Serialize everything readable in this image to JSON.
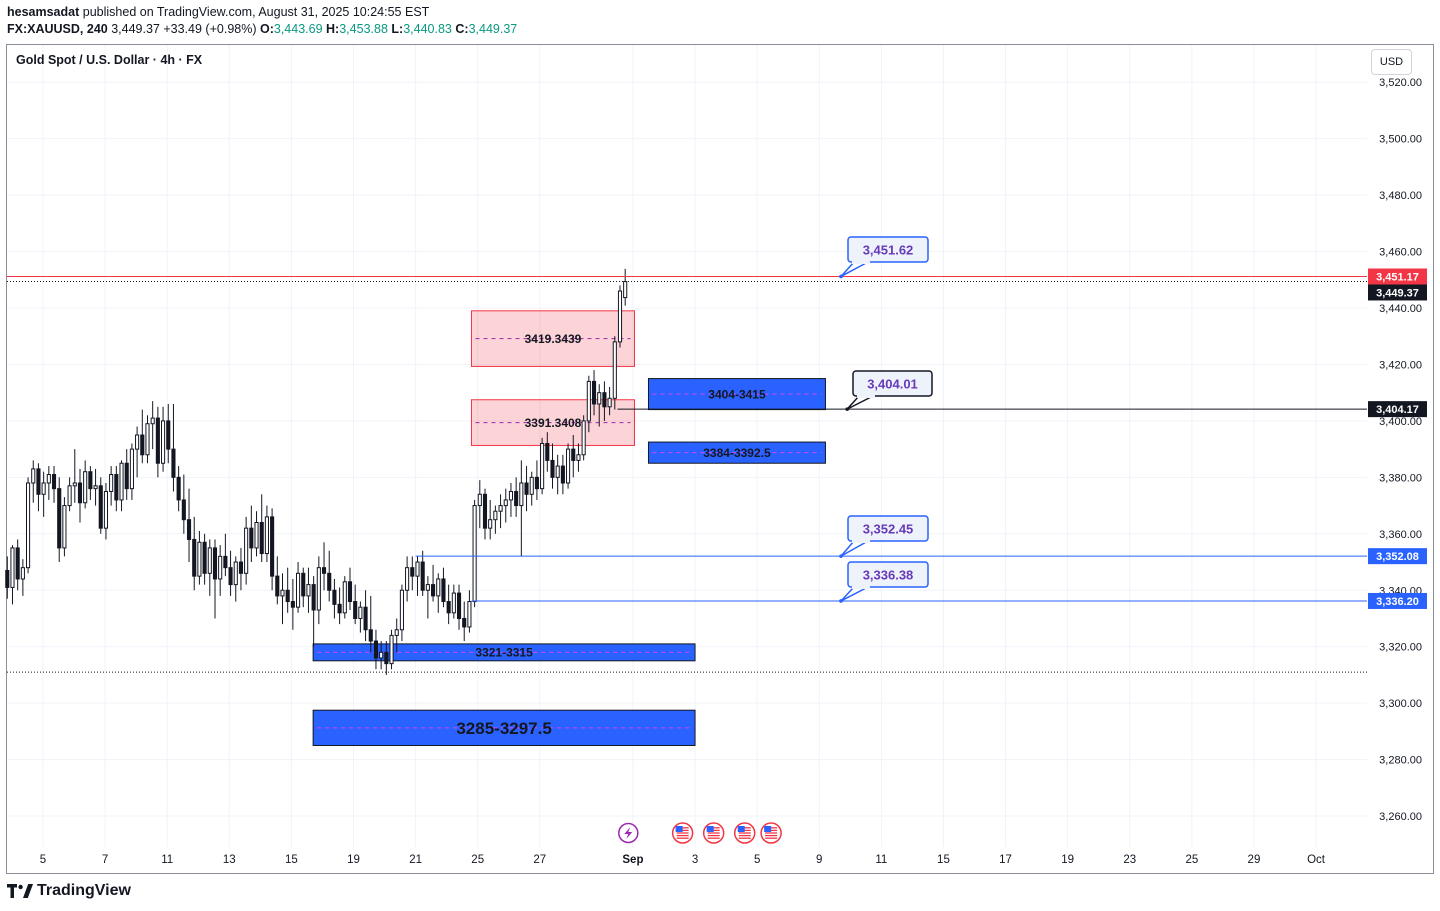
{
  "header": {
    "author": "hesamsadat",
    "published_text": "published on TradingView.com, August 31, 2025 10:24:55 EST",
    "symbol": "FX:XAUUSD, 240",
    "last": "3,449.37",
    "change": "+33.49 (+0.98%)",
    "o_label": "O:",
    "o": "3,443.69",
    "h_label": "H:",
    "h": "3,453.88",
    "l_label": "L:",
    "l": "3,440.83",
    "c_label": "C:",
    "c": "3,449.37"
  },
  "pane": {
    "title": "Gold Spot / U.S. Dollar · 4h · FX",
    "currency": "USD"
  },
  "footer": {
    "brand": "TradingView"
  },
  "colors": {
    "up": "#089981",
    "candle": "#131722",
    "red_line": "#f23645",
    "blue_zone": "#2962ff",
    "pink_zone": "#f6cdd1",
    "grid": "#f0f3fa"
  },
  "chart_data": {
    "type": "candlestick",
    "title": "Gold Spot / U.S. Dollar · 4h · FX",
    "currency": "USD",
    "ylim": [
      3252,
      3532
    ],
    "y_ticks": [
      {
        "v": 3520,
        "t": "3,520.00"
      },
      {
        "v": 3500,
        "t": "3,500.00"
      },
      {
        "v": 3480,
        "t": "3,480.00"
      },
      {
        "v": 3460,
        "t": "3,460.00"
      },
      {
        "v": 3440,
        "t": "3,440.00"
      },
      {
        "v": 3420,
        "t": "3,420.00"
      },
      {
        "v": 3400,
        "t": "3,400.00"
      },
      {
        "v": 3380,
        "t": "3,380.00"
      },
      {
        "v": 3360,
        "t": "3,360.00"
      },
      {
        "v": 3340,
        "t": "3,340.00"
      },
      {
        "v": 3320,
        "t": "3,320.00"
      },
      {
        "v": 3300,
        "t": "3,300.00"
      },
      {
        "v": 3280,
        "t": "3,280.00"
      },
      {
        "v": 3260,
        "t": "3,260.00"
      }
    ],
    "x_ticks": [
      {
        "d": 0,
        "t": "5"
      },
      {
        "d": 2,
        "t": "7"
      },
      {
        "d": 4,
        "t": "11"
      },
      {
        "d": 6,
        "t": "13"
      },
      {
        "d": 8,
        "t": "15"
      },
      {
        "d": 10,
        "t": "19"
      },
      {
        "d": 12,
        "t": "21"
      },
      {
        "d": 14,
        "t": "25"
      },
      {
        "d": 16,
        "t": "27"
      },
      {
        "d": 19,
        "t": "Sep",
        "bold": true
      },
      {
        "d": 21,
        "t": "3"
      },
      {
        "d": 23,
        "t": "5"
      },
      {
        "d": 25,
        "t": "9"
      },
      {
        "d": 27,
        "t": "11"
      },
      {
        "d": 29,
        "t": "15"
      },
      {
        "d": 31,
        "t": "17"
      },
      {
        "d": 33,
        "t": "19"
      },
      {
        "d": 35,
        "t": "23"
      },
      {
        "d": 37,
        "t": "25"
      },
      {
        "d": 39,
        "t": "29"
      },
      {
        "d": 41,
        "t": "Oct"
      }
    ],
    "price_tags": [
      {
        "v": 3451.17,
        "t": "3,451.17",
        "bg": "#f23645"
      },
      {
        "v": 3449.37,
        "t": "3,449.37",
        "bg": "#131722"
      },
      {
        "v": 3404.17,
        "t": "3,404.17",
        "bg": "#131722"
      },
      {
        "v": 3352.08,
        "t": "3,352.08",
        "bg": "#2962ff"
      },
      {
        "v": 3336.2,
        "t": "3,336.20",
        "bg": "#2962ff"
      }
    ],
    "hlines": [
      {
        "v": 3451.17,
        "d0": -1.2,
        "d1": 43.7,
        "color": "#f23645",
        "dash": ""
      },
      {
        "v": 3449.37,
        "d0": -1.2,
        "d1": 43.7,
        "color": "#131722",
        "dash": "1,2"
      },
      {
        "v": 3311.0,
        "d0": -1.2,
        "d1": 43.7,
        "color": "#131722",
        "dash": "1,2"
      },
      {
        "v": 3404.17,
        "d0": 18.5,
        "d1": 43.7,
        "color": "#131722",
        "dash": ""
      },
      {
        "v": 3352.08,
        "d0": 12.0,
        "d1": 43.7,
        "color": "#2962ff",
        "dash": ""
      },
      {
        "v": 3336.2,
        "d0": 13.8,
        "d1": 43.7,
        "color": "#2962ff",
        "dash": ""
      }
    ],
    "zones": [
      {
        "label": "3419.3439",
        "top": 3439,
        "bottom": 3419.3,
        "d0": 13.8,
        "d1": 19.05,
        "style": "pink",
        "fs": 12
      },
      {
        "label": "3391.3408",
        "top": 3407.5,
        "bottom": 3391.3,
        "d0": 13.8,
        "d1": 19.05,
        "style": "pink",
        "fs": 12
      },
      {
        "label": "3404-3415",
        "top": 3415,
        "bottom": 3404,
        "d0": 19.5,
        "d1": 25.2,
        "style": "blue",
        "fs": 12
      },
      {
        "label": "3384-3392.5",
        "top": 3392.5,
        "bottom": 3385,
        "d0": 19.5,
        "d1": 25.2,
        "style": "blue",
        "fs": 12
      },
      {
        "label": "3321-3315",
        "top": 3321,
        "bottom": 3315,
        "d0": 8.7,
        "d1": 21.0,
        "style": "blue",
        "fs": 12
      },
      {
        "label": "3285-3297.5",
        "top": 3297.5,
        "bottom": 3285,
        "d0": 8.7,
        "d1": 21.0,
        "style": "blue",
        "fs": 17
      }
    ],
    "callouts": [
      {
        "label": "3,451.62",
        "v": 3451.17,
        "d": 25.7,
        "bx": 848,
        "by": 237,
        "bw": 80,
        "bh": 25,
        "border": "#2962ff"
      },
      {
        "label": "3,404.01",
        "v": 3404.17,
        "d": 25.9,
        "bx": 853,
        "by": 371,
        "bw": 79,
        "bh": 25,
        "border": "#131722"
      },
      {
        "label": "3,352.45",
        "v": 3352.08,
        "d": 25.7,
        "bx": 848,
        "by": 516,
        "bw": 80,
        "bh": 25,
        "border": "#2962ff"
      },
      {
        "label": "3,336.38",
        "v": 3336.2,
        "d": 25.7,
        "bx": 848,
        "by": 562,
        "bw": 80,
        "bh": 25,
        "border": "#2962ff"
      }
    ],
    "events": [
      {
        "d": 18.85,
        "kind": "lightning"
      },
      {
        "d": 20.6,
        "kind": "us-flag"
      },
      {
        "d": 21.6,
        "kind": "us-flag"
      },
      {
        "d": 22.6,
        "kind": "us-flag"
      },
      {
        "d": 23.45,
        "kind": "us-flag"
      }
    ],
    "ohlc": [
      [
        3347,
        3352,
        3337,
        3341
      ],
      [
        3341,
        3356,
        3335,
        3355
      ],
      [
        3355,
        3358,
        3340,
        3344
      ],
      [
        3344,
        3351,
        3338,
        3348
      ],
      [
        3348,
        3380,
        3346,
        3378
      ],
      [
        3378,
        3386,
        3371,
        3383
      ],
      [
        3383,
        3385,
        3368,
        3374
      ],
      [
        3374,
        3382,
        3366,
        3378
      ],
      [
        3378,
        3384,
        3372,
        3381
      ],
      [
        3381,
        3384,
        3371,
        3376
      ],
      [
        3376,
        3380,
        3350,
        3355
      ],
      [
        3355,
        3373,
        3352,
        3370
      ],
      [
        3370,
        3380,
        3368,
        3377
      ],
      [
        3377,
        3390,
        3371,
        3378
      ],
      [
        3378,
        3383,
        3364,
        3371
      ],
      [
        3371,
        3386,
        3369,
        3382
      ],
      [
        3382,
        3384,
        3372,
        3376
      ],
      [
        3376,
        3383,
        3370,
        3377
      ],
      [
        3377,
        3380,
        3360,
        3362
      ],
      [
        3362,
        3378,
        3358,
        3375
      ],
      [
        3375,
        3384,
        3370,
        3381
      ],
      [
        3381,
        3384,
        3368,
        3372
      ],
      [
        3372,
        3386,
        3368,
        3385
      ],
      [
        3385,
        3390,
        3372,
        3376
      ],
      [
        3376,
        3392,
        3372,
        3390
      ],
      [
        3390,
        3398,
        3380,
        3395
      ],
      [
        3395,
        3404,
        3385,
        3388
      ],
      [
        3388,
        3402,
        3385,
        3399
      ],
      [
        3399,
        3407,
        3390,
        3401
      ],
      [
        3401,
        3405,
        3380,
        3385
      ],
      [
        3385,
        3405,
        3382,
        3400
      ],
      [
        3400,
        3406,
        3385,
        3390
      ],
      [
        3390,
        3406,
        3375,
        3380
      ],
      [
        3380,
        3384,
        3368,
        3372
      ],
      [
        3372,
        3381,
        3360,
        3365
      ],
      [
        3365,
        3376,
        3350,
        3358
      ],
      [
        3358,
        3366,
        3340,
        3345
      ],
      [
        3345,
        3361,
        3342,
        3357
      ],
      [
        3357,
        3360,
        3342,
        3346
      ],
      [
        3346,
        3358,
        3338,
        3355
      ],
      [
        3355,
        3358,
        3330,
        3344
      ],
      [
        3344,
        3356,
        3338,
        3352
      ],
      [
        3352,
        3360,
        3345,
        3348
      ],
      [
        3348,
        3354,
        3338,
        3342
      ],
      [
        3342,
        3352,
        3336,
        3350
      ],
      [
        3350,
        3355,
        3340,
        3346
      ],
      [
        3346,
        3366,
        3342,
        3362
      ],
      [
        3362,
        3370,
        3350,
        3355
      ],
      [
        3355,
        3368,
        3352,
        3364
      ],
      [
        3364,
        3374,
        3350,
        3353
      ],
      [
        3353,
        3370,
        3350,
        3366
      ],
      [
        3366,
        3369,
        3340,
        3345
      ],
      [
        3345,
        3352,
        3335,
        3338
      ],
      [
        3338,
        3346,
        3328,
        3340
      ],
      [
        3340,
        3348,
        3332,
        3336
      ],
      [
        3336,
        3344,
        3326,
        3334
      ],
      [
        3334,
        3350,
        3332,
        3346
      ],
      [
        3346,
        3348,
        3334,
        3338
      ],
      [
        3338,
        3348,
        3332,
        3342
      ],
      [
        3342,
        3345,
        3320,
        3333
      ],
      [
        3333,
        3352,
        3328,
        3348
      ],
      [
        3348,
        3357,
        3340,
        3346
      ],
      [
        3346,
        3354,
        3336,
        3340
      ],
      [
        3340,
        3344,
        3330,
        3335
      ],
      [
        3335,
        3341,
        3328,
        3332
      ],
      [
        3332,
        3345,
        3330,
        3343
      ],
      [
        3343,
        3348,
        3333,
        3336
      ],
      [
        3336,
        3342,
        3328,
        3330
      ],
      [
        3330,
        3336,
        3325,
        3334
      ],
      [
        3334,
        3340,
        3322,
        3326
      ],
      [
        3326,
        3338,
        3318,
        3322
      ],
      [
        3322,
        3326,
        3312,
        3316
      ],
      [
        3316,
        3322,
        3312,
        3318
      ],
      [
        3318,
        3322,
        3310,
        3314
      ],
      [
        3314,
        3326,
        3312,
        3324
      ],
      [
        3324,
        3330,
        3318,
        3326
      ],
      [
        3326,
        3342,
        3322,
        3340
      ],
      [
        3340,
        3352,
        3336,
        3348
      ],
      [
        3348,
        3352,
        3340,
        3345
      ],
      [
        3345,
        3352,
        3338,
        3350
      ],
      [
        3350,
        3354,
        3338,
        3340
      ],
      [
        3340,
        3345,
        3330,
        3342
      ],
      [
        3342,
        3349,
        3336,
        3338
      ],
      [
        3338,
        3346,
        3332,
        3344
      ],
      [
        3344,
        3348,
        3334,
        3336
      ],
      [
        3336,
        3342,
        3328,
        3332
      ],
      [
        3332,
        3342,
        3330,
        3339
      ],
      [
        3339,
        3342,
        3326,
        3330
      ],
      [
        3330,
        3336,
        3322,
        3327
      ],
      [
        3327,
        3340,
        3325,
        3336
      ],
      [
        3336,
        3372,
        3334,
        3370
      ],
      [
        3370,
        3379,
        3362,
        3374
      ],
      [
        3374,
        3376,
        3358,
        3362
      ],
      [
        3362,
        3372,
        3358,
        3365
      ],
      [
        3365,
        3370,
        3360,
        3368
      ],
      [
        3368,
        3374,
        3362,
        3370
      ],
      [
        3370,
        3376,
        3364,
        3372
      ],
      [
        3372,
        3378,
        3366,
        3375
      ],
      [
        3375,
        3380,
        3366,
        3370
      ],
      [
        3370,
        3386,
        3352,
        3378
      ],
      [
        3378,
        3384,
        3368,
        3374
      ],
      [
        3374,
        3382,
        3370,
        3380
      ],
      [
        3380,
        3386,
        3372,
        3376
      ],
      [
        3376,
        3394,
        3374,
        3392
      ],
      [
        3392,
        3396,
        3382,
        3386
      ],
      [
        3386,
        3392,
        3376,
        3380
      ],
      [
        3380,
        3388,
        3374,
        3384
      ],
      [
        3384,
        3388,
        3374,
        3378
      ],
      [
        3378,
        3392,
        3376,
        3390
      ],
      [
        3390,
        3395,
        3380,
        3386
      ],
      [
        3386,
        3392,
        3382,
        3388
      ],
      [
        3388,
        3402,
        3386,
        3400
      ],
      [
        3400,
        3416,
        3396,
        3414
      ],
      [
        3414,
        3418,
        3402,
        3406
      ],
      [
        3406,
        3413,
        3398,
        3410
      ],
      [
        3410,
        3414,
        3400,
        3405
      ],
      [
        3405,
        3412,
        3402,
        3408
      ],
      [
        3408,
        3430,
        3404,
        3428
      ],
      [
        3428,
        3448,
        3426,
        3446
      ],
      [
        3443.69,
        3453.88,
        3440.83,
        3449.37
      ]
    ]
  }
}
